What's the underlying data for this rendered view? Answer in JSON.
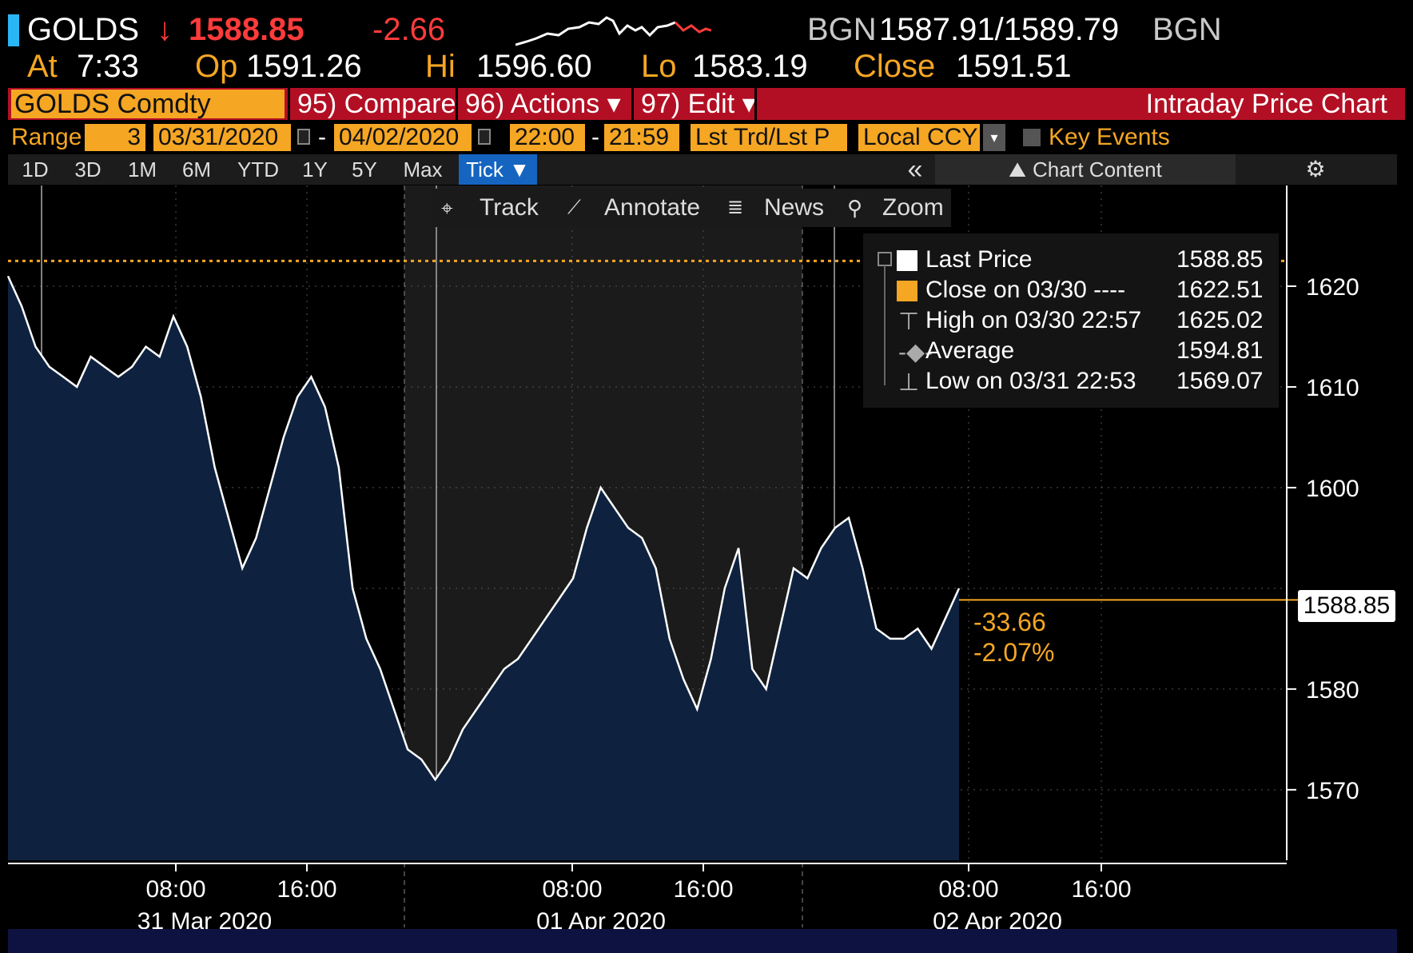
{
  "header": {
    "ticker": "GOLDS",
    "arrow": "↓",
    "last_price": "1588.85",
    "change": "-2.66",
    "bgn_left": "BGN",
    "bid_ask": "1587.91/1589.79",
    "bgn_right": "BGN",
    "at_label": "At",
    "at_time": "7:33",
    "op_label": "Op",
    "op_value": "1591.26",
    "hi_label": "Hi",
    "hi_value": "1596.60",
    "lo_label": "Lo",
    "lo_value": "1583.19",
    "close_label": "Close",
    "close_value": "1591.51"
  },
  "toolbar": {
    "security": "GOLDS Comdty",
    "compare": "95) Compare",
    "actions": "96) Actions ▾",
    "edit": "97) Edit ▾",
    "title": "Intraday Price Chart"
  },
  "range": {
    "label": "Range",
    "days": "3",
    "start_date": "03/31/2020",
    "dash1": "-",
    "end_date": "04/02/2020",
    "start_time": "22:00",
    "dash2": "-",
    "end_time": "21:59",
    "price_type": "Lst Trd/Lst P",
    "currency": "Local CCY",
    "key_events": "Key Events"
  },
  "periods": [
    "1D",
    "3D",
    "1M",
    "6M",
    "YTD",
    "1Y",
    "5Y",
    "Max",
    "Tick ▼"
  ],
  "period_active": "Tick ▼",
  "chart_toolbar": {
    "collapse": "«",
    "chart_content": "Chart Content",
    "settings_icon": "⚙",
    "track": "Track",
    "annotate": "Annotate",
    "news": "News",
    "zoom": "Zoom"
  },
  "legend": [
    {
      "label": "Last Price",
      "value": "1588.85"
    },
    {
      "label": "Close on 03/30 ----",
      "value": "1622.51"
    },
    {
      "label": "High on 03/30 22:57",
      "value": "1625.02"
    },
    {
      "label": "Average",
      "value": "1594.81"
    },
    {
      "label": "Low on 03/31 22:53",
      "value": "1569.07"
    }
  ],
  "price_label": "1588.85",
  "change_abs": "-33.66",
  "change_pct": "-2.07%",
  "colors": {
    "accent_amber": "#f5a623",
    "toolbar_red": "#b30f24",
    "area_fill": "#0e2240",
    "price_up": "#ffffff",
    "price_down": "#ff3b3b"
  },
  "chart_data": {
    "type": "line",
    "title": "",
    "ylim": [
      1563,
      1630
    ],
    "yticks": [
      1570,
      1580,
      1600,
      1610,
      1620
    ],
    "xlabels": [
      {
        "time": "08:00",
        "date": "31 Mar 2020"
      },
      {
        "time": "16:00",
        "date": ""
      },
      {
        "time": "08:00",
        "date": "01 Apr 2020"
      },
      {
        "time": "16:00",
        "date": ""
      },
      {
        "time": "08:00",
        "date": "02 Apr 2020"
      },
      {
        "time": "16:00",
        "date": ""
      }
    ],
    "reference_line": 1622.51,
    "last": 1588.85,
    "series": [
      {
        "values": [
          1621,
          1618,
          1614,
          1612,
          1611,
          1610,
          1613,
          1612,
          1611,
          1612,
          1614,
          1613,
          1617,
          1614,
          1609,
          1602,
          1597,
          1592,
          1595,
          1600,
          1605,
          1609,
          1611,
          1608,
          1602,
          1590,
          1585,
          1582,
          1578,
          1574,
          1573,
          1571,
          1573,
          1576,
          1578,
          1580,
          1582,
          1583,
          1585,
          1587,
          1589,
          1591,
          1596,
          1600,
          1598,
          1596,
          1595,
          1592,
          1585,
          1581,
          1578,
          1583,
          1590,
          1594,
          1582,
          1580,
          1586,
          1592,
          1591,
          1594,
          1596,
          1597,
          1592,
          1586,
          1585,
          1585,
          1586,
          1584,
          1587,
          1590
        ]
      }
    ]
  }
}
